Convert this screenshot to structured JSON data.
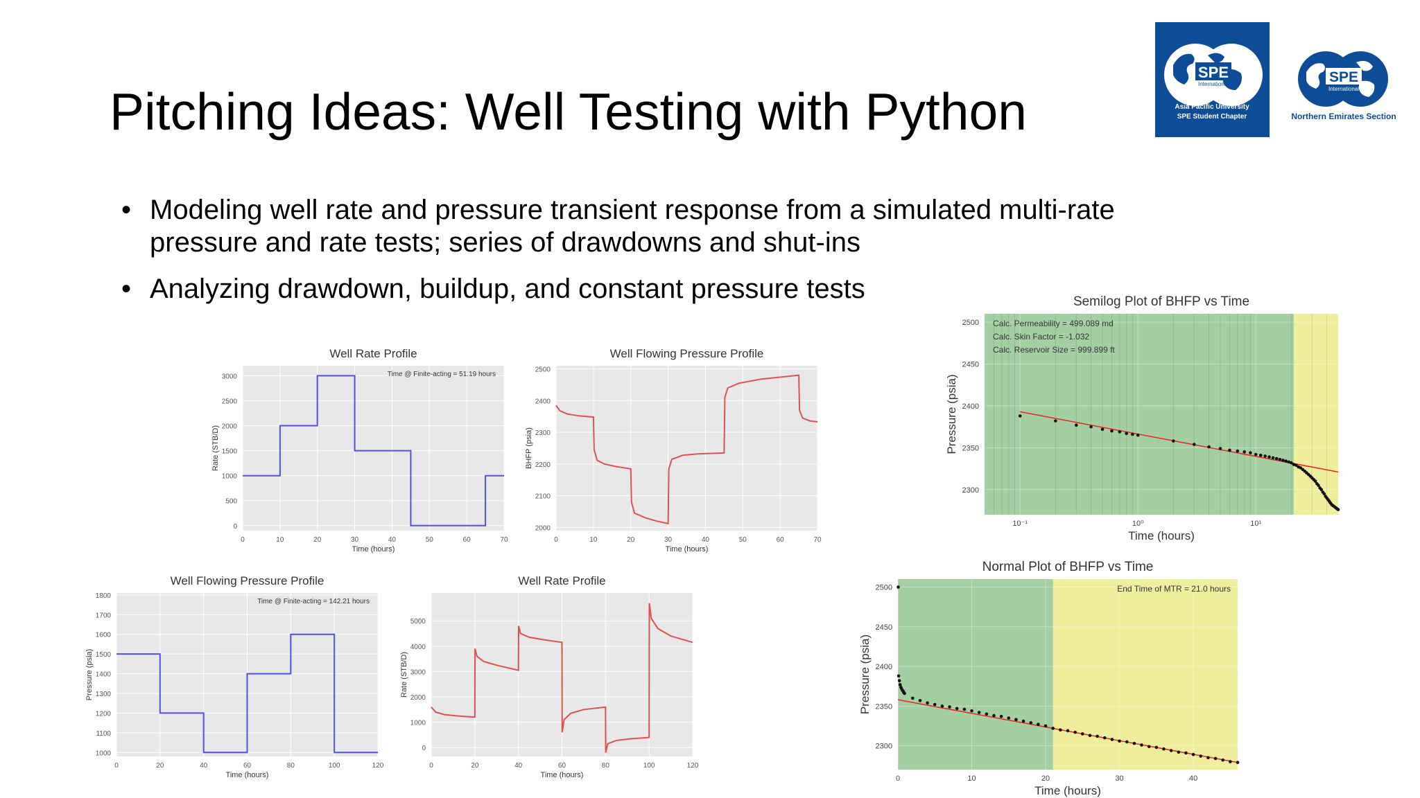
{
  "slide": {
    "title": "Pitching Ideas: Well Testing with Python",
    "bullets": [
      "Modeling well rate and pressure transient response from a simulated multi-rate pressure and rate tests; series of drawdowns and shut-ins",
      "Analyzing drawdown, buildup, and constant pressure tests"
    ]
  },
  "logos": {
    "left": {
      "brand": "SPE",
      "sub": "International",
      "line1": "Asia Pacific University",
      "line2": "SPE Student Chapter",
      "bg": "#0d4c96"
    },
    "right": {
      "brand": "SPE",
      "sub": "International",
      "caption": "Northern Emirates Section",
      "color": "#0d4c96"
    }
  },
  "chart_data": [
    {
      "id": "rate1",
      "type": "line",
      "title": "Well Rate Profile",
      "xlabel": "Time (hours)",
      "ylabel": "Rate (STB/D)",
      "xlim": [
        0,
        70
      ],
      "ylim": [
        -100,
        3200
      ],
      "xticks": [
        0,
        10,
        20,
        30,
        40,
        50,
        60,
        70
      ],
      "yticks": [
        0,
        500,
        1000,
        1500,
        2000,
        2500,
        3000
      ],
      "annotation": "Time @ Finite-acting = 51.19 hours",
      "color": "#5050ee",
      "series": [
        {
          "x": [
            0,
            10,
            10,
            20,
            20,
            30,
            30,
            45,
            45,
            65,
            65,
            70
          ],
          "y": [
            1000,
            1000,
            2000,
            2000,
            3000,
            3000,
            1500,
            1500,
            0,
            0,
            1000,
            1000
          ]
        }
      ]
    },
    {
      "id": "pres1",
      "type": "line",
      "title": "Well Flowing Pressure Profile",
      "xlabel": "Time (hours)",
      "ylabel": "BHFP (psia)",
      "xlim": [
        0,
        70
      ],
      "ylim": [
        1990,
        2510
      ],
      "xticks": [
        0,
        10,
        20,
        30,
        40,
        50,
        60,
        70
      ],
      "yticks": [
        2000,
        2100,
        2200,
        2300,
        2400,
        2500
      ],
      "color": "#e05050",
      "series": [
        {
          "x": [
            0,
            1,
            3,
            6,
            10,
            10.2,
            11,
            13,
            16,
            20,
            20.2,
            21,
            24,
            27,
            30,
            30.2,
            31,
            34,
            38,
            45,
            45.2,
            46,
            49,
            55,
            65,
            65.2,
            66,
            68,
            70
          ],
          "y": [
            2385,
            2368,
            2358,
            2352,
            2348,
            2245,
            2212,
            2200,
            2192,
            2185,
            2080,
            2045,
            2030,
            2020,
            2012,
            2185,
            2215,
            2228,
            2232,
            2235,
            2410,
            2440,
            2455,
            2468,
            2480,
            2370,
            2345,
            2336,
            2333
          ]
        }
      ]
    },
    {
      "id": "pres2",
      "type": "line",
      "title": "Well Flowing Pressure Profile",
      "xlabel": "Time (hours)",
      "ylabel": "Pressure (psia)",
      "xlim": [
        0,
        120
      ],
      "ylim": [
        980,
        1810
      ],
      "xticks": [
        0,
        20,
        40,
        60,
        80,
        100,
        120
      ],
      "yticks": [
        1000,
        1100,
        1200,
        1300,
        1400,
        1500,
        1600,
        1700,
        1800
      ],
      "annotation": "Time @ Finite-acting = 142.21 hours",
      "color": "#5050ee",
      "series": [
        {
          "x": [
            0,
            20,
            20,
            40,
            40,
            60,
            60,
            80,
            80,
            100,
            100,
            120
          ],
          "y": [
            1500,
            1500,
            1200,
            1200,
            1000,
            1000,
            1400,
            1400,
            1600,
            1600,
            1000,
            1000
          ]
        }
      ]
    },
    {
      "id": "rate2",
      "type": "line",
      "title": "Well Rate Profile",
      "xlabel": "Time (hours)",
      "ylabel": "Rate (STB/D)",
      "xlim": [
        0,
        120
      ],
      "ylim": [
        -350,
        6100
      ],
      "xticks": [
        0,
        20,
        40,
        60,
        80,
        100,
        120
      ],
      "yticks": [
        0,
        1000,
        2000,
        3000,
        4000,
        5000
      ],
      "color": "#e05050",
      "series": [
        {
          "x": [
            0,
            2,
            6,
            12,
            20,
            20.1,
            21,
            24,
            30,
            40,
            40.1,
            41,
            45,
            52,
            60,
            60.1,
            61,
            64,
            70,
            80,
            80.1,
            81,
            85,
            92,
            100,
            100.1,
            101,
            104,
            110,
            120
          ],
          "y": [
            1600,
            1400,
            1300,
            1250,
            1200,
            3900,
            3600,
            3400,
            3250,
            3050,
            4800,
            4500,
            4350,
            4250,
            4150,
            600,
            1100,
            1350,
            1500,
            1600,
            -200,
            150,
            280,
            350,
            400,
            5700,
            5100,
            4700,
            4400,
            4150
          ]
        }
      ]
    },
    {
      "id": "semilog",
      "type": "scatter",
      "title": "Semilog Plot of BHFP vs Time",
      "xlabel": "Time (hours)",
      "ylabel": "Pressure (psia)",
      "xscale": "log",
      "xlim": [
        0.05,
        50
      ],
      "ylim": [
        2270,
        2510
      ],
      "xticks": [
        0.1,
        1,
        10
      ],
      "xticklabels": [
        "10⁻¹",
        "10⁰",
        "10¹"
      ],
      "yticks": [
        2300,
        2350,
        2400,
        2450,
        2500
      ],
      "region_boundary": 21,
      "region_colors": [
        "#a3cfa3",
        "#eeee9c"
      ],
      "annotations": [
        "Calc. Permeability = 499.089 md",
        "Calc. Skin Factor = -1.032",
        "Calc. Reservoir Size = 999.899 ft"
      ],
      "fit_line": {
        "x": [
          0.1,
          50
        ],
        "y": [
          2393,
          2321
        ]
      },
      "points": {
        "x": [
          0.1,
          0.2,
          0.3,
          0.4,
          0.5,
          0.6,
          0.7,
          0.8,
          0.9,
          1,
          2,
          3,
          4,
          5,
          6,
          7,
          8,
          9,
          10,
          11,
          12,
          13,
          14,
          15,
          16,
          17,
          18,
          19,
          20,
          21,
          22,
          23,
          24,
          25,
          26,
          27,
          28,
          29,
          30,
          31,
          32,
          33,
          34,
          35,
          36,
          37,
          38,
          39,
          40,
          41,
          42,
          43,
          44,
          45,
          46,
          47,
          48,
          49,
          50
        ],
        "y": [
          2388,
          2382,
          2377,
          2375,
          2372,
          2370,
          2369,
          2367,
          2366,
          2365,
          2358,
          2354,
          2351,
          2349,
          2347,
          2346,
          2345,
          2344,
          2342,
          2341,
          2340,
          2339,
          2338,
          2337,
          2336,
          2335,
          2334,
          2333,
          2332,
          2330,
          2329,
          2327,
          2326,
          2324,
          2322,
          2320,
          2318,
          2316,
          2314,
          2312,
          2310,
          2307,
          2305,
          2302,
          2300,
          2297,
          2295,
          2292,
          2290,
          2288,
          2286,
          2284,
          2282,
          2281,
          2280,
          2279,
          2278,
          2277,
          2276
        ]
      }
    },
    {
      "id": "normal",
      "type": "scatter",
      "title": "Normal Plot of BHFP vs Time",
      "xlabel": "Time (hours)",
      "ylabel": "Pressure (psia)",
      "xlim": [
        0,
        46
      ],
      "ylim": [
        2270,
        2510
      ],
      "xticks": [
        0,
        10,
        20,
        30,
        40
      ],
      "yticks": [
        2300,
        2350,
        2400,
        2450,
        2500
      ],
      "region_boundary": 21,
      "region_colors": [
        "#a3cfa3",
        "#eeee9c"
      ],
      "annotations": [
        "End Time of MTR = 21.0 hours"
      ],
      "fit_line": {
        "x": [
          0,
          46
        ],
        "y": [
          2358,
          2279
        ]
      },
      "points": {
        "x": [
          0.05,
          0.1,
          0.2,
          0.3,
          0.4,
          0.5,
          0.6,
          0.7,
          0.8,
          0.9,
          2,
          3,
          4,
          5,
          6,
          7,
          8,
          9,
          10,
          11,
          12,
          13,
          14,
          15,
          16,
          17,
          18,
          19,
          20,
          21,
          22,
          23,
          24,
          25,
          26,
          27,
          28,
          29,
          30,
          31,
          32,
          33,
          34,
          35,
          36,
          37,
          38,
          39,
          40,
          41,
          42,
          43,
          44,
          45,
          46
        ],
        "y": [
          2500,
          2388,
          2382,
          2377,
          2374,
          2372,
          2370,
          2369,
          2367,
          2366,
          2360,
          2357,
          2354,
          2352,
          2350,
          2349,
          2347,
          2346,
          2344,
          2342,
          2340,
          2338,
          2337,
          2335,
          2333,
          2331,
          2329,
          2327,
          2325,
          2322,
          2320,
          2319,
          2317,
          2315,
          2313,
          2312,
          2310,
          2308,
          2306,
          2305,
          2303,
          2301,
          2299,
          2298,
          2296,
          2294,
          2292,
          2291,
          2289,
          2287,
          2285,
          2284,
          2282,
          2280,
          2279
        ]
      }
    }
  ]
}
